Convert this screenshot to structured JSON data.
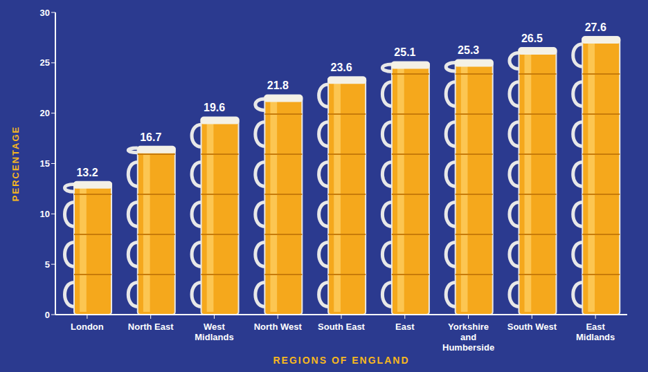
{
  "chart_data": {
    "type": "bar",
    "categories": [
      "London",
      "North East",
      "West Midlands",
      "North West",
      "South East",
      "East",
      "Yorkshire and Humberside",
      "South West",
      "East Midlands"
    ],
    "values": [
      13.2,
      16.7,
      19.6,
      21.8,
      23.6,
      25.1,
      25.3,
      26.5,
      27.6
    ],
    "color": "#f5a81c",
    "x_label": "REGIONS OF ENGLAND",
    "y_label": "PERCENTAGE",
    "ylim": [
      0,
      30
    ],
    "yticks": [
      0,
      5,
      10,
      15,
      20,
      25,
      30
    ],
    "grid": false,
    "data_labels": true
  }
}
